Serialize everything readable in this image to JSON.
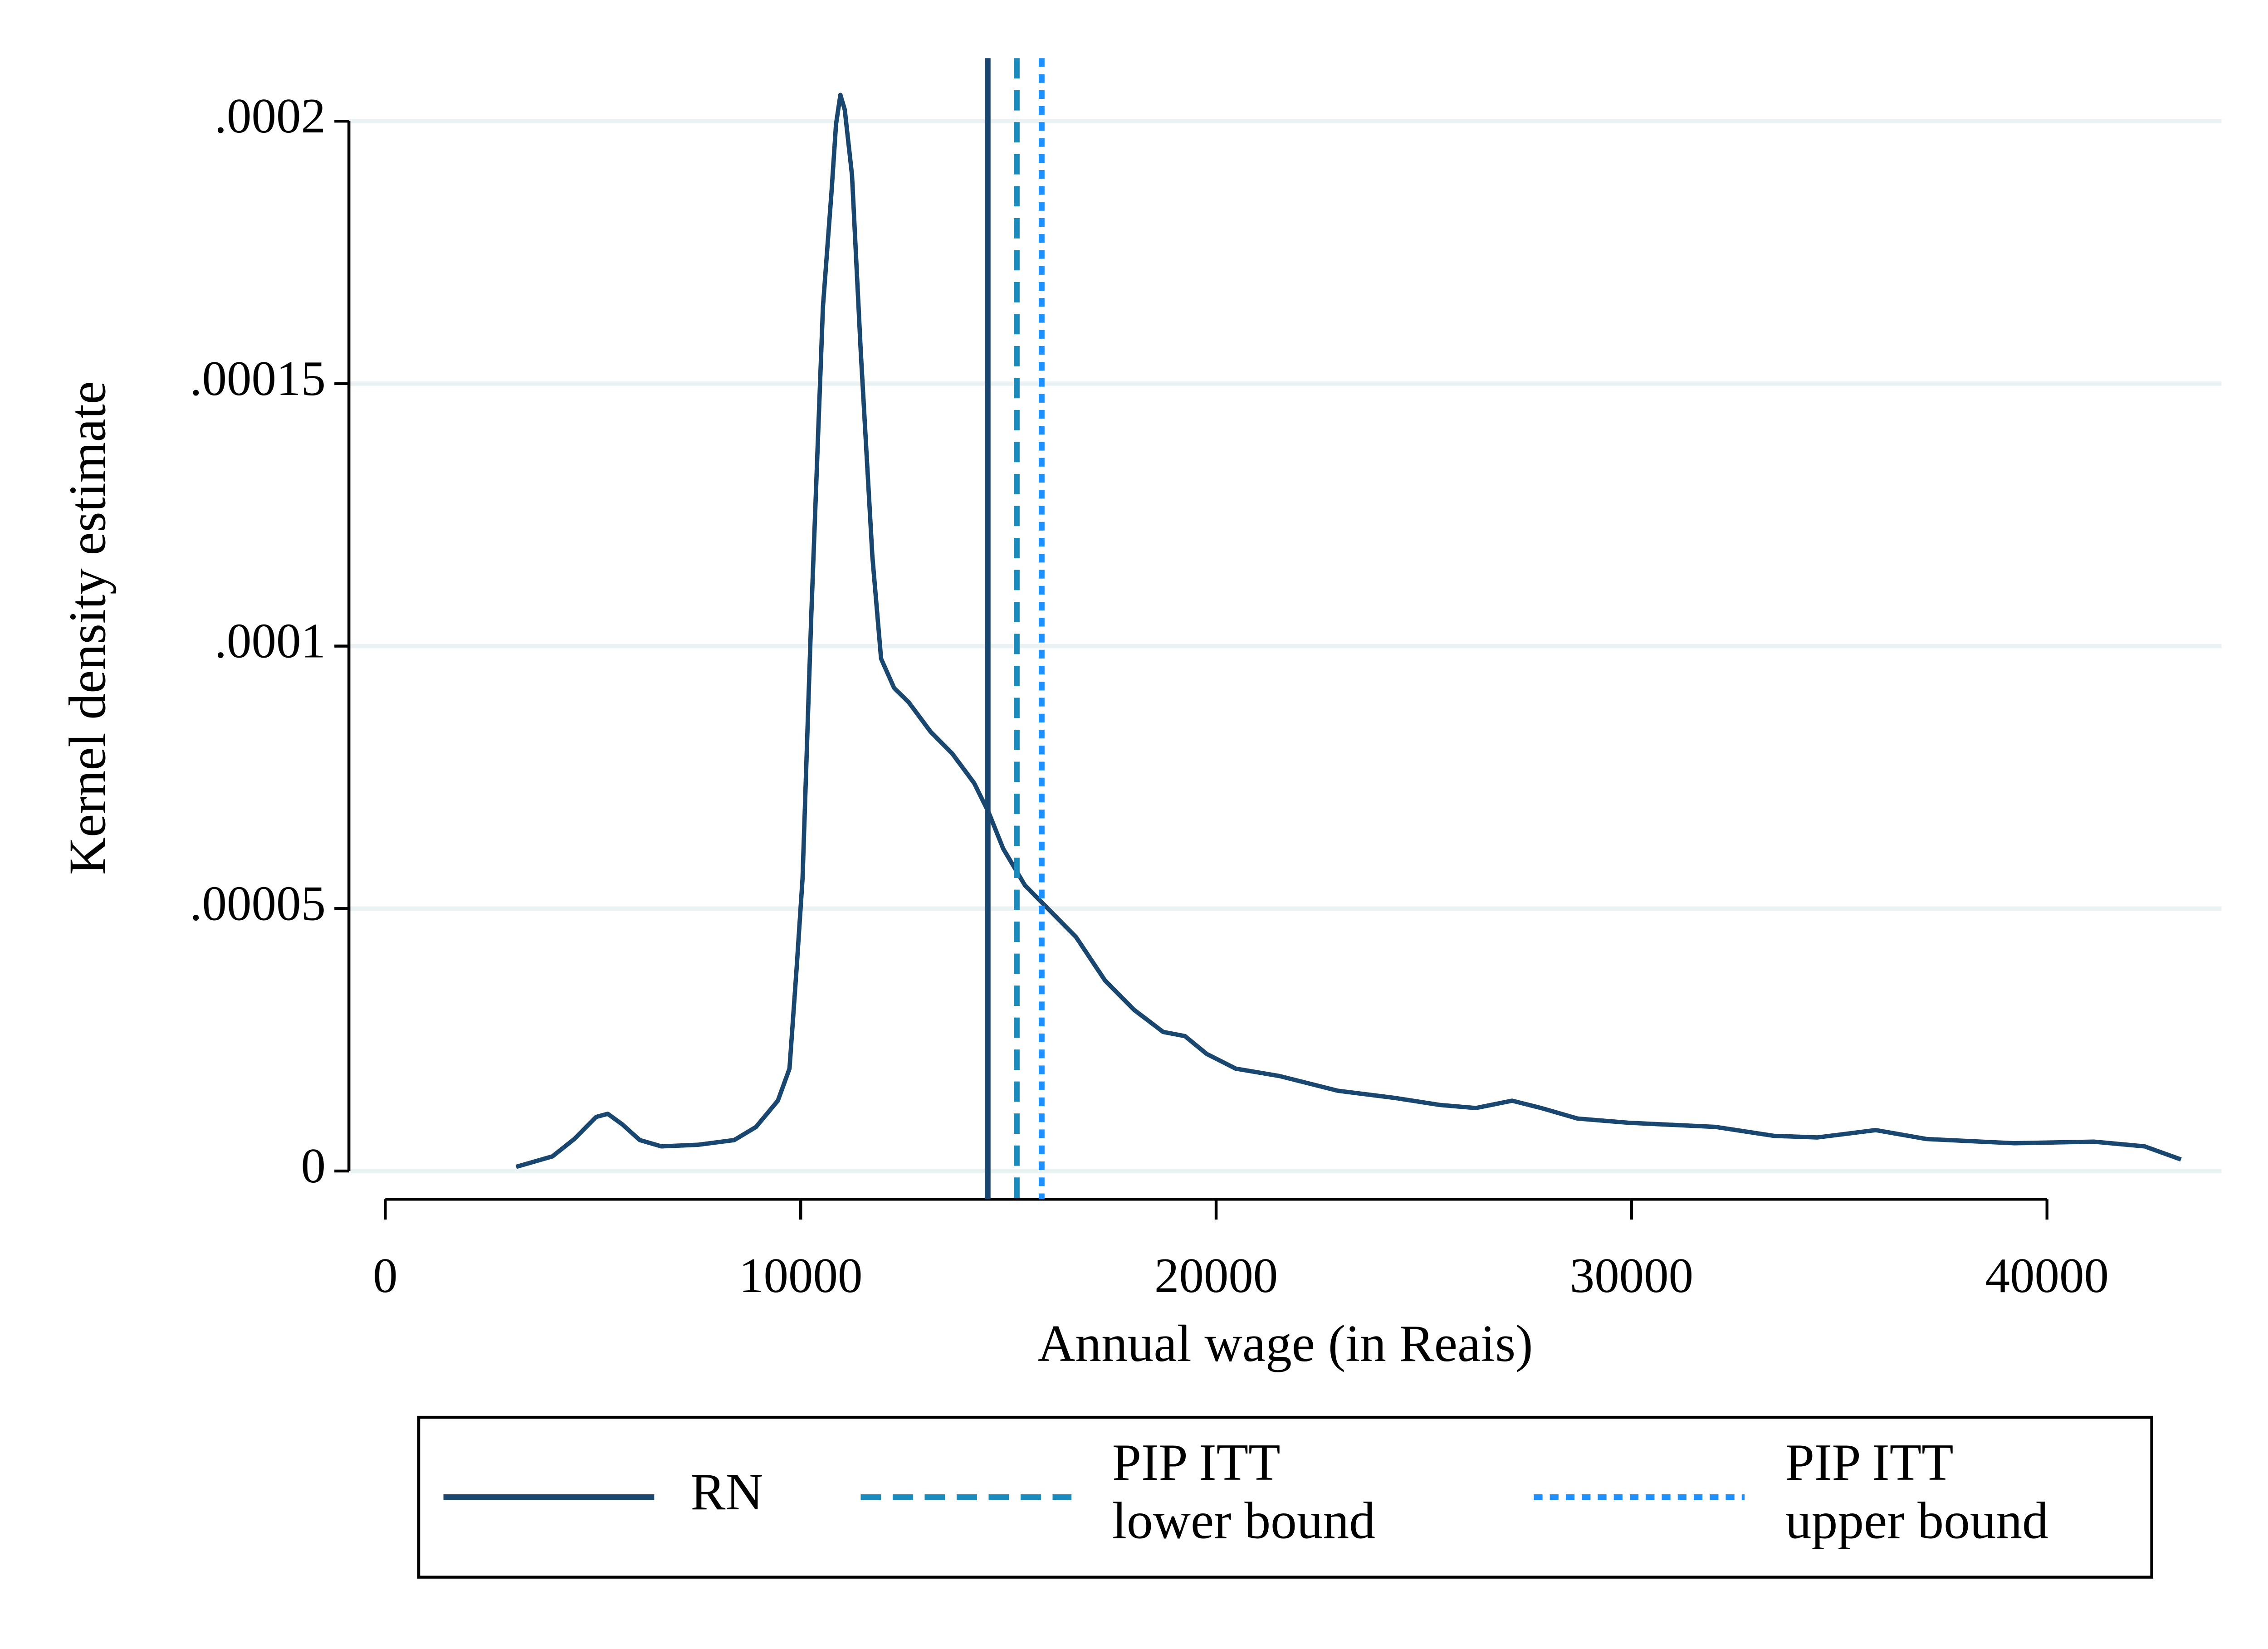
{
  "chart_data": {
    "type": "line",
    "x_label": "Annual wage (in Reais)",
    "y_label": "Kernel density estimate",
    "color": "#1a476f",
    "x": [
      3150,
      4025,
      4550,
      5075,
      5355,
      5705,
      6125,
      6650,
      7525,
      8400,
      8925,
      9450,
      9730,
      9905,
      10045,
      10255,
      10535,
      10745,
      10850,
      10955,
      11060,
      11235,
      11445,
      11725,
      11935,
      12250,
      12600,
      13125,
      13650,
      14175,
      14525,
      14875,
      15400,
      15925,
      16625,
      17325,
      18025,
      18725,
      19250,
      19775,
      20475,
      21525,
      22925,
      24325,
      25375,
      26250,
      27125,
      27825,
      28700,
      29925,
      32025,
      33425,
      34475,
      35875,
      37100,
      39200,
      41125,
      42350,
      43225
    ],
    "values": [
      8e-07,
      2.8e-06,
      6.1e-06,
      1.03e-05,
      1.09e-05,
      8.9e-06,
      5.9e-06,
      4.7e-06,
      5e-06,
      5.9e-06,
      8.4e-06,
      1.34e-05,
      1.95e-05,
      3.9e-05,
      5.58e-05,
      0.000106,
      0.0001646,
      0.0001869,
      0.0001994,
      0.000205,
      0.0002022,
      0.0001897,
      0.0001562,
      0.0001171,
      9.76e-05,
      9.2e-05,
      8.93e-05,
      8.37e-05,
      7.95e-05,
      7.39e-05,
      6.83e-05,
      6.14e-05,
      5.44e-05,
      5.02e-05,
      4.46e-05,
      3.63e-05,
      3.07e-05,
      2.65e-05,
      2.57e-05,
      2.23e-05,
      1.95e-05,
      1.81e-05,
      1.53e-05,
      1.39e-05,
      1.26e-05,
      1.2e-05,
      1.34e-05,
      1.2e-05,
      1e-05,
      9.2e-06,
      8.4e-06,
      6.7e-06,
      6.4e-06,
      7.8e-06,
      6.1e-06,
      5.3e-06,
      5.6e-06,
      4.7e-06,
      2.2e-06
    ],
    "vlines": [
      {
        "name": "RN",
        "x": 14500,
        "color": "#1a476f",
        "style": "solid"
      },
      {
        "name": "PIP ITT\nlower bound",
        "x": 15200,
        "color": "#1a8bbd",
        "style": "dashed"
      },
      {
        "name": "PIP ITT\nupper bound",
        "x": 15800,
        "color": "#1e90ff",
        "style": "dotted"
      }
    ],
    "xlim": [
      -875,
      44200
    ],
    "ylim": [
      0,
      0.000212
    ],
    "xticks": [
      0,
      10000,
      20000,
      30000,
      40000
    ],
    "yticks": [
      0,
      {
        "value": 5e-05,
        "label": ".00005"
      },
      {
        "value": 0.0001,
        "label": ".0001"
      },
      {
        "value": 0.00015,
        "label": ".00015"
      },
      {
        "value": 0.0002,
        "label": ".0002"
      }
    ],
    "grid": true,
    "legend": "bottom"
  }
}
